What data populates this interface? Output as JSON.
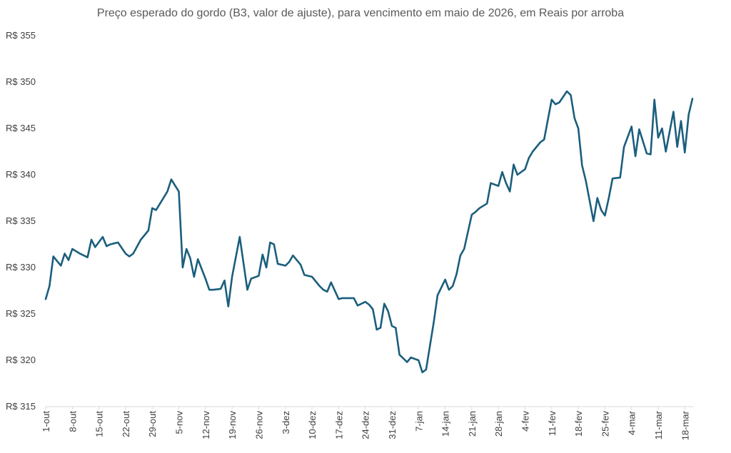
{
  "chart_data": {
    "type": "line",
    "title": "Preço esperado do gordo (B3, valor de ajuste), para vencimento em maio de 2026, em Reais por arroba",
    "xlabel": "",
    "ylabel": "",
    "ylim": [
      315,
      355
    ],
    "yticks": [
      315,
      320,
      325,
      330,
      335,
      340,
      345,
      350,
      355
    ],
    "ytick_prefix": "R$ ",
    "grid": false,
    "line_color": "#1b5e7d",
    "xtick_labels": [
      "1-out",
      "8-out",
      "15-out",
      "22-out",
      "29-out",
      "5-nov",
      "12-nov",
      "19-nov",
      "26-nov",
      "3-dez",
      "10-dez",
      "17-dez",
      "24-dez",
      "31-dez",
      "7-jan",
      "14-jan",
      "21-jan",
      "28-jan",
      "4-fev",
      "11-fev",
      "18-fev",
      "25-fev",
      "4-mar",
      "11-mar",
      "18-mar"
    ],
    "series": [
      {
        "name": "Preço esperado",
        "x": [
          0,
          1,
          2,
          4,
          5,
          6,
          7,
          9,
          10,
          11,
          12,
          13,
          15,
          16,
          17,
          18,
          19,
          21,
          22,
          23,
          25,
          26,
          27,
          28,
          29,
          32,
          33,
          35,
          36,
          37,
          38,
          39,
          40,
          42,
          43,
          44,
          46,
          47,
          48,
          49,
          51,
          53,
          54,
          56,
          57,
          58,
          59,
          60,
          61,
          63,
          64,
          65,
          67,
          68,
          70,
          71,
          72,
          73,
          74,
          75,
          77,
          78,
          81,
          82,
          84,
          85,
          86,
          87,
          88,
          89,
          90,
          91,
          92,
          93,
          95,
          96,
          98,
          99,
          100,
          102,
          103,
          105,
          106,
          107,
          108,
          109,
          110,
          112,
          113,
          114,
          116,
          117,
          119,
          120,
          121,
          122,
          123,
          124,
          126,
          127,
          128,
          130,
          131,
          133,
          134,
          135,
          137,
          138,
          139,
          140,
          141,
          142,
          144,
          145,
          146,
          147,
          148,
          149,
          151,
          152,
          154,
          155,
          156,
          158,
          159,
          160,
          161,
          162,
          163,
          165,
          166,
          167,
          168,
          169,
          170
        ],
        "values": [
          326.6,
          328.0,
          331.2,
          330.2,
          331.5,
          330.8,
          332.0,
          331.5,
          331.3,
          331.1,
          333.0,
          332.2,
          333.3,
          332.3,
          332.5,
          332.6,
          332.7,
          331.5,
          331.2,
          331.5,
          333.0,
          333.5,
          334.0,
          336.4,
          336.2,
          338.2,
          339.5,
          338.2,
          330.0,
          332.0,
          331.0,
          329.0,
          330.9,
          328.8,
          327.6,
          327.6,
          327.7,
          328.6,
          325.8,
          329.0,
          333.3,
          327.6,
          328.8,
          329.1,
          331.4,
          330.0,
          332.7,
          332.5,
          330.4,
          330.2,
          330.6,
          331.3,
          330.3,
          329.2,
          329.0,
          328.5,
          328.0,
          327.6,
          327.4,
          328.4,
          326.6,
          326.7,
          326.7,
          325.9,
          326.3,
          326.0,
          325.5,
          323.3,
          323.5,
          326.1,
          325.3,
          323.7,
          323.5,
          320.6,
          319.8,
          320.3,
          320.0,
          318.7,
          319.0,
          324.1,
          327.0,
          328.7,
          327.6,
          328.0,
          329.3,
          331.3,
          332.0,
          335.7,
          336.0,
          336.4,
          336.9,
          339.1,
          338.8,
          340.3,
          339.1,
          338.2,
          341.1,
          340.0,
          340.6,
          341.8,
          342.5,
          343.5,
          343.8,
          348.1,
          347.6,
          347.8,
          349.0,
          348.6,
          346.1,
          345.0,
          341.0,
          339.3,
          335.0,
          337.5,
          336.2,
          335.6,
          337.5,
          339.6,
          339.7,
          343.0,
          345.2,
          342.0,
          344.9,
          342.3,
          342.2,
          348.1,
          344.0,
          345.0,
          342.5,
          346.8,
          343.0,
          345.8,
          342.4,
          346.5,
          348.2
        ]
      }
    ]
  }
}
